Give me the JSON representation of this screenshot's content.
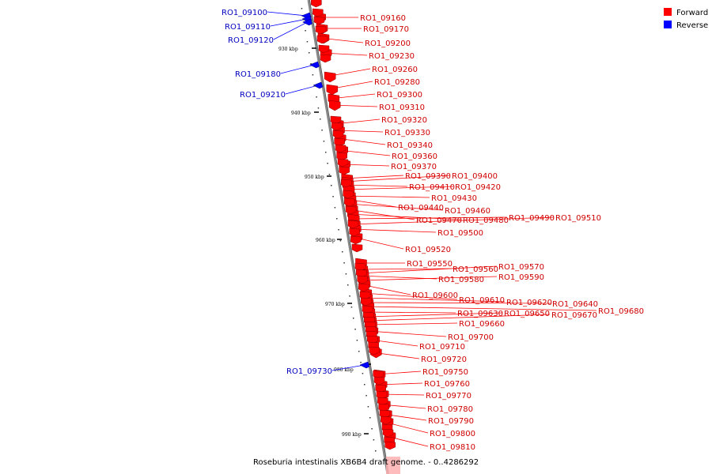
{
  "title": "Roseburia intestinalis XB6B4 draft genome. - 0..4286292",
  "legend": [
    {
      "label": "Forward",
      "color": "#ff0000"
    },
    {
      "label": "Reverse",
      "color": "#0000ff"
    }
  ],
  "colors": {
    "forward": "#ff0000",
    "reverse": "#0000ff",
    "backbone": "#888888"
  },
  "axis_ticks": [
    "930 kbp",
    "940 kbp",
    "950 kbp",
    "960 kbp",
    "970 kbp",
    "980 kbp",
    "990 kbp"
  ],
  "genes": [
    {
      "name": "RO1_09100",
      "strand": "reverse"
    },
    {
      "name": "RO1_09110",
      "strand": "reverse"
    },
    {
      "name": "RO1_09120",
      "strand": "reverse"
    },
    {
      "name": "RO1_09160",
      "strand": "forward"
    },
    {
      "name": "RO1_09170",
      "strand": "forward"
    },
    {
      "name": "RO1_09180",
      "strand": "reverse"
    },
    {
      "name": "RO1_09200",
      "strand": "forward"
    },
    {
      "name": "RO1_09210",
      "strand": "reverse"
    },
    {
      "name": "RO1_09230",
      "strand": "forward"
    },
    {
      "name": "RO1_09260",
      "strand": "forward"
    },
    {
      "name": "RO1_09280",
      "strand": "forward"
    },
    {
      "name": "RO1_09300",
      "strand": "forward"
    },
    {
      "name": "RO1_09310",
      "strand": "forward"
    },
    {
      "name": "RO1_09320",
      "strand": "forward"
    },
    {
      "name": "RO1_09330",
      "strand": "forward"
    },
    {
      "name": "RO1_09340",
      "strand": "forward"
    },
    {
      "name": "RO1_09360",
      "strand": "forward"
    },
    {
      "name": "RO1_09370",
      "strand": "forward"
    },
    {
      "name": "RO1_09390",
      "strand": "forward"
    },
    {
      "name": "RO1_09400",
      "strand": "forward"
    },
    {
      "name": "RO1_09410",
      "strand": "forward"
    },
    {
      "name": "RO1_09420",
      "strand": "forward"
    },
    {
      "name": "RO1_09430",
      "strand": "forward"
    },
    {
      "name": "RO1_09440",
      "strand": "forward"
    },
    {
      "name": "RO1_09460",
      "strand": "forward"
    },
    {
      "name": "RO1_09470",
      "strand": "forward"
    },
    {
      "name": "RO1_09480",
      "strand": "forward"
    },
    {
      "name": "RO1_09490",
      "strand": "forward"
    },
    {
      "name": "RO1_09510",
      "strand": "forward"
    },
    {
      "name": "RO1_09500",
      "strand": "forward"
    },
    {
      "name": "RO1_09520",
      "strand": "forward"
    },
    {
      "name": "RO1_09550",
      "strand": "forward"
    },
    {
      "name": "RO1_09560",
      "strand": "forward"
    },
    {
      "name": "RO1_09570",
      "strand": "forward"
    },
    {
      "name": "RO1_09580",
      "strand": "forward"
    },
    {
      "name": "RO1_09590",
      "strand": "forward"
    },
    {
      "name": "RO1_09600",
      "strand": "forward"
    },
    {
      "name": "RO1_09610",
      "strand": "forward"
    },
    {
      "name": "RO1_09620",
      "strand": "forward"
    },
    {
      "name": "RO1_09640",
      "strand": "forward"
    },
    {
      "name": "RO1_09680",
      "strand": "forward"
    },
    {
      "name": "RO1_09630",
      "strand": "forward"
    },
    {
      "name": "RO1_09650",
      "strand": "forward"
    },
    {
      "name": "RO1_09670",
      "strand": "forward"
    },
    {
      "name": "RO1_09660",
      "strand": "forward"
    },
    {
      "name": "RO1_09700",
      "strand": "forward"
    },
    {
      "name": "RO1_09710",
      "strand": "forward"
    },
    {
      "name": "RO1_09720",
      "strand": "forward"
    },
    {
      "name": "RO1_09730",
      "strand": "reverse"
    },
    {
      "name": "RO1_09750",
      "strand": "forward"
    },
    {
      "name": "RO1_09760",
      "strand": "forward"
    },
    {
      "name": "RO1_09770",
      "strand": "forward"
    },
    {
      "name": "RO1_09780",
      "strand": "forward"
    },
    {
      "name": "RO1_09790",
      "strand": "forward"
    },
    {
      "name": "RO1_09800",
      "strand": "forward"
    },
    {
      "name": "RO1_09810",
      "strand": "forward"
    }
  ]
}
